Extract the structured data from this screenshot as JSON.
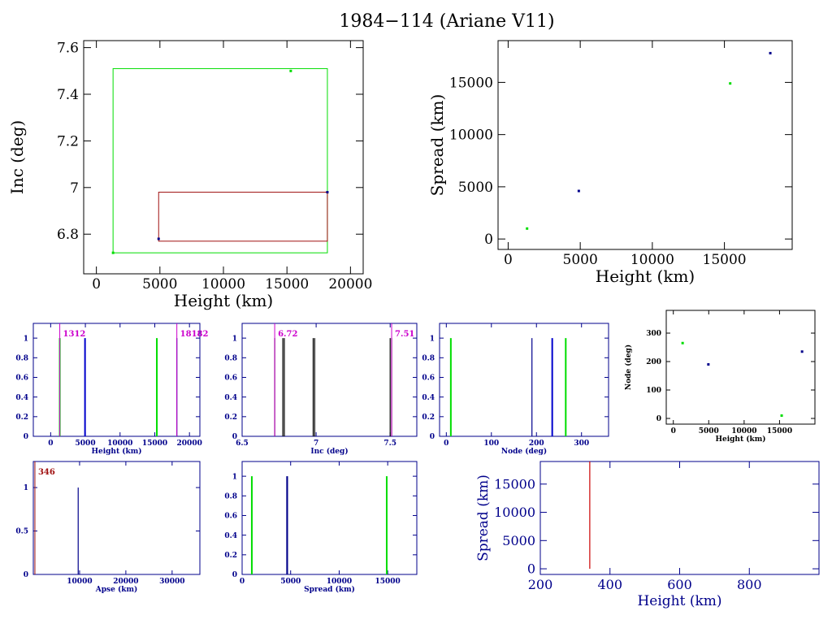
{
  "title": "1984−114 (Ariane V11)",
  "colors": {
    "black": "#000000",
    "navy": "#00008b",
    "blue": "#0000cc",
    "green": "#00dd00",
    "red": "#cc0000",
    "darkred": "#a01010",
    "magenta": "#cc00cc"
  },
  "chart_data": [
    {
      "id": "inc-vs-height",
      "type": "scatter",
      "xlabel": "Height (km)",
      "ylabel": "Inc (deg)",
      "xlim": [
        -1000,
        21000
      ],
      "ylim": [
        6.63,
        7.63
      ],
      "xticks": [
        0,
        5000,
        10000,
        15000,
        20000
      ],
      "xtick_labels": [
        "0",
        "5000",
        "10000",
        "15000",
        "20000"
      ],
      "yticks": [
        6.8,
        7.0,
        7.2,
        7.4,
        7.6
      ],
      "ytick_labels": [
        "6.8",
        "7",
        "7.2",
        "7.4",
        "7.6"
      ],
      "series": [
        {
          "color": "green",
          "values": [
            [
              1312,
              6.72
            ],
            [
              15300,
              7.5
            ]
          ]
        },
        {
          "color": "navy",
          "values": [
            [
              4900,
              6.78
            ],
            [
              18182,
              6.98
            ]
          ]
        }
      ],
      "boxes": [
        {
          "color": "green",
          "x": [
            1312,
            18182
          ],
          "y": [
            6.72,
            7.51
          ]
        },
        {
          "color": "darkred",
          "x": [
            4900,
            18182
          ],
          "y": [
            6.77,
            6.98
          ]
        }
      ]
    },
    {
      "id": "spread-vs-height",
      "type": "scatter",
      "xlabel": "Height (km)",
      "ylabel": "Spread (km)",
      "xlim": [
        -700,
        19700
      ],
      "ylim": [
        -1000,
        19000
      ],
      "xticks": [
        0,
        5000,
        10000,
        15000
      ],
      "xtick_labels": [
        "0",
        "5000",
        "10000",
        "15000"
      ],
      "yticks": [
        0,
        5000,
        10000,
        15000
      ],
      "ytick_labels": [
        "0",
        "5000",
        "10000",
        "15000"
      ],
      "series": [
        {
          "color": "green",
          "values": [
            [
              1312,
              1000
            ],
            [
              15400,
              14900
            ]
          ]
        },
        {
          "color": "navy",
          "values": [
            [
              4900,
              4600
            ],
            [
              18182,
              17800
            ]
          ]
        }
      ]
    },
    {
      "id": "hist-height",
      "type": "bar",
      "xlabel": "Height (km)",
      "xlim": [
        -2500,
        21500
      ],
      "ylim": [
        0,
        1.15
      ],
      "xticks": [
        0,
        5000,
        10000,
        15000,
        20000
      ],
      "xtick_labels": [
        "0",
        "5000",
        "10000",
        "15000",
        "20000"
      ],
      "yticks": [
        0,
        0.2,
        0.4,
        0.6,
        0.8,
        1
      ],
      "ytick_labels": [
        "0",
        "0.2",
        "0.4",
        "0.6",
        "0.8",
        "1"
      ],
      "bars": [
        {
          "x": 1312,
          "y": 1,
          "color": "green"
        },
        {
          "x": 4950,
          "y": 1,
          "color": "blue"
        },
        {
          "x": 15300,
          "y": 1,
          "color": "green"
        },
        {
          "x": 18182,
          "y": 1,
          "color": "navy"
        }
      ],
      "markers": [
        {
          "x": 1312,
          "label": "1312",
          "color": "magenta",
          "side": "right"
        },
        {
          "x": 18182,
          "label": "18182",
          "color": "magenta",
          "side": "right"
        }
      ]
    },
    {
      "id": "hist-inc",
      "type": "bar",
      "xlabel": "Inc (deg)",
      "xlim": [
        6.5,
        7.68
      ],
      "ylim": [
        0,
        1.15
      ],
      "xticks": [
        6.5,
        7.0,
        7.5
      ],
      "xtick_labels": [
        "6.5",
        "7",
        "7.5"
      ],
      "yticks": [
        0,
        0.2,
        0.4,
        0.6,
        0.8,
        1
      ],
      "ytick_labels": [
        "0",
        "0.2",
        "0.4",
        "0.6",
        "0.8",
        "1"
      ],
      "bars": [
        {
          "x": 6.72,
          "y": 1,
          "color": "black"
        },
        {
          "x": 6.775,
          "y": 1,
          "color": "black"
        },
        {
          "x": 6.785,
          "y": 1,
          "color": "black"
        },
        {
          "x": 6.98,
          "y": 1,
          "color": "black"
        },
        {
          "x": 6.99,
          "y": 1,
          "color": "black"
        },
        {
          "x": 7.5,
          "y": 1,
          "color": "black"
        },
        {
          "x": 7.51,
          "y": 1,
          "color": "black"
        }
      ],
      "markers": [
        {
          "x": 6.72,
          "label": "6.72",
          "color": "magenta",
          "side": "right"
        },
        {
          "x": 7.51,
          "label": "7.51",
          "color": "magenta",
          "side": "right"
        }
      ]
    },
    {
      "id": "hist-node",
      "type": "bar",
      "xlabel": "Node (deg)",
      "xlim": [
        -15,
        360
      ],
      "ylim": [
        0,
        1.15
      ],
      "xticks": [
        0,
        100,
        200,
        300
      ],
      "xtick_labels": [
        "0",
        "100",
        "200",
        "300"
      ],
      "yticks": [
        0,
        0.2,
        0.4,
        0.6,
        0.8,
        1
      ],
      "ytick_labels": [
        "0",
        "0.2",
        "0.4",
        "0.6",
        "0.8",
        "1"
      ],
      "bars": [
        {
          "x": 10,
          "y": 1,
          "color": "green"
        },
        {
          "x": 190,
          "y": 1,
          "color": "navy"
        },
        {
          "x": 235,
          "y": 1,
          "color": "blue"
        },
        {
          "x": 265,
          "y": 1,
          "color": "green"
        }
      ]
    },
    {
      "id": "node-vs-height",
      "type": "scatter",
      "xlabel": "Height (km)",
      "ylabel": "Node (deg)",
      "xlim": [
        -1000,
        20000
      ],
      "ylim": [
        -20,
        380
      ],
      "xticks": [
        0,
        5000,
        10000,
        15000
      ],
      "xtick_labels": [
        "0",
        "5000",
        "10000",
        "15000"
      ],
      "yticks": [
        0,
        100,
        200,
        300
      ],
      "ytick_labels": [
        "0",
        "100",
        "200",
        "300"
      ],
      "series": [
        {
          "color": "green",
          "values": [
            [
              1312,
              265
            ],
            [
              15300,
              10
            ]
          ]
        },
        {
          "color": "navy",
          "values": [
            [
              4950,
              190
            ],
            [
              18182,
              235
            ]
          ]
        }
      ]
    },
    {
      "id": "hist-apse",
      "type": "bar",
      "xlabel": "Apse (km)",
      "xlim": [
        0,
        36000
      ],
      "ylim": [
        0,
        1.3
      ],
      "xticks": [
        10000,
        20000,
        30000
      ],
      "xtick_labels": [
        "10000",
        "20000",
        "30000"
      ],
      "yticks": [
        0,
        0.5,
        1
      ],
      "ytick_labels": [
        "0",
        "0.5",
        "1"
      ],
      "bars": [
        {
          "x": 9700,
          "y": 1,
          "color": "navy"
        }
      ],
      "markers": [
        {
          "x": 346,
          "label": "346",
          "color": "darkred",
          "side": "right"
        }
      ]
    },
    {
      "id": "hist-spread",
      "type": "bar",
      "xlabel": "Spread (km)",
      "xlim": [
        0,
        18000
      ],
      "ylim": [
        0,
        1.15
      ],
      "xticks": [
        0,
        5000,
        10000,
        15000
      ],
      "xtick_labels": [
        "0",
        "5000",
        "10000",
        "15000"
      ],
      "yticks": [
        0,
        0.2,
        0.4,
        0.6,
        0.8,
        1
      ],
      "ytick_labels": [
        "0",
        "0.2",
        "0.4",
        "0.6",
        "0.8",
        "1"
      ],
      "bars": [
        {
          "x": 1000,
          "y": 1,
          "color": "green"
        },
        {
          "x": 4600,
          "y": 1,
          "color": "navy"
        },
        {
          "x": 4680,
          "y": 1,
          "color": "navy"
        },
        {
          "x": 14900,
          "y": 1,
          "color": "green"
        }
      ]
    },
    {
      "id": "spread-vs-height-zoom",
      "type": "scatter",
      "xlabel": "Height (km)",
      "ylabel": "Spread (km)",
      "xlim": [
        200,
        1000
      ],
      "ylim": [
        -1000,
        19000
      ],
      "xticks": [
        200,
        400,
        600,
        800
      ],
      "xtick_labels": [
        "200",
        "400",
        "600",
        "800"
      ],
      "yticks": [
        0,
        5000,
        10000,
        15000
      ],
      "ytick_labels": [
        "0",
        "5000",
        "10000",
        "15000"
      ],
      "series": [],
      "segments": [
        {
          "x": [
            342,
            342
          ],
          "y": [
            0,
            19000
          ],
          "color": "red"
        }
      ]
    }
  ]
}
